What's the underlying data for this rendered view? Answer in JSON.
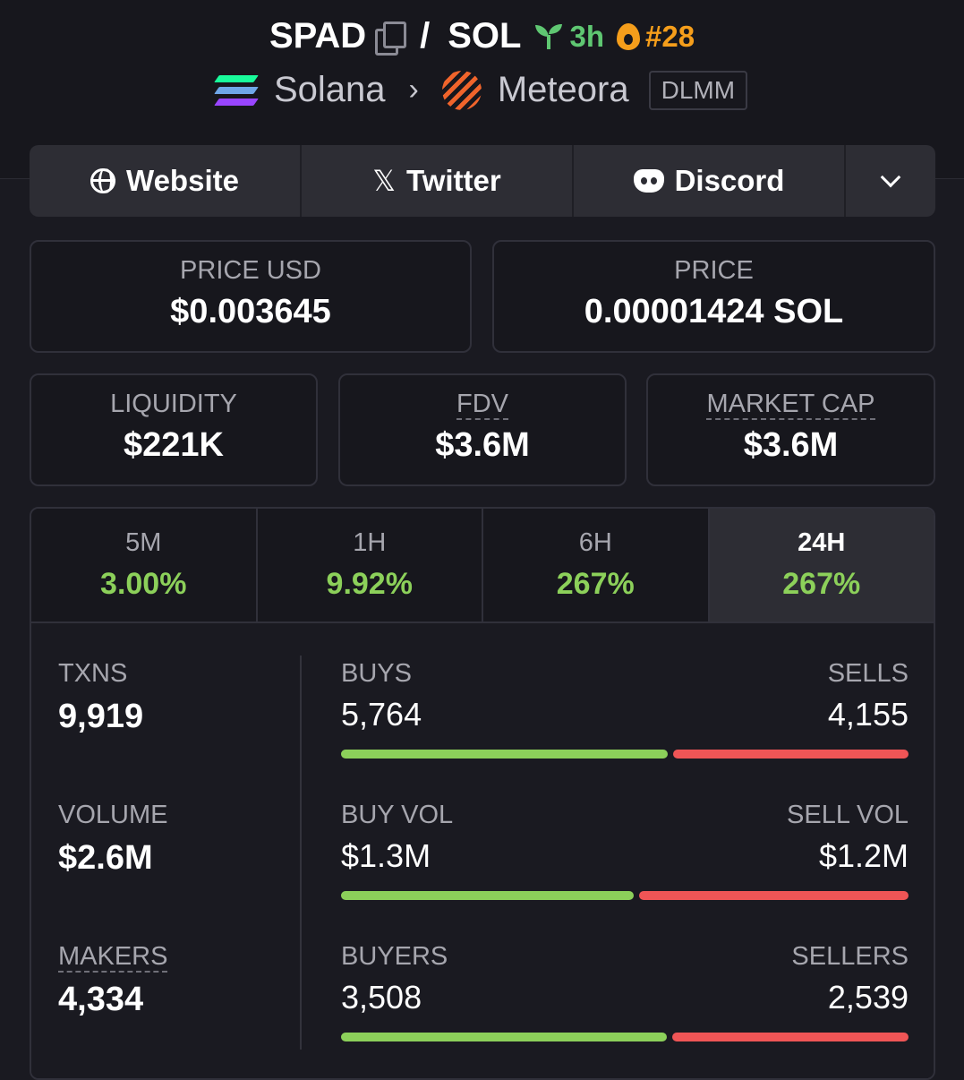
{
  "header": {
    "token_symbol": "SPAD",
    "separator": "/",
    "quote_symbol": "SOL",
    "age": "3h",
    "rank": "#28",
    "chain": "Solana",
    "dex": "Meteora",
    "pool_type": "DLMM",
    "icons": {
      "copy": "copy-icon",
      "age": "seedling-icon",
      "rank": "flame-icon",
      "chain": "solana-logo-icon",
      "dex": "meteora-logo-icon"
    }
  },
  "links": {
    "website": "Website",
    "twitter": "Twitter",
    "discord": "Discord"
  },
  "prices": {
    "price_usd_label": "PRICE USD",
    "price_usd": "$0.003645",
    "price_label": "PRICE",
    "price": "0.00001424 SOL"
  },
  "metrics": {
    "liquidity_label": "LIQUIDITY",
    "liquidity": "$221K",
    "fdv_label": "FDV",
    "fdv": "$3.6M",
    "market_cap_label": "MARKET CAP",
    "market_cap": "$3.6M"
  },
  "timeframes": [
    {
      "label": "5M",
      "change": "3.00%"
    },
    {
      "label": "1H",
      "change": "9.92%"
    },
    {
      "label": "6H",
      "change": "267%"
    },
    {
      "label": "24H",
      "change": "267%"
    }
  ],
  "active_timeframe": "24H",
  "stats": {
    "txns_label": "TXNS",
    "txns": "9,919",
    "volume_label": "VOLUME",
    "volume": "$2.6M",
    "makers_label": "MAKERS",
    "makers": "4,334",
    "buys_label": "BUYS",
    "buys": "5,764",
    "sells_label": "SELLS",
    "sells": "4,155",
    "buy_vol_label": "BUY VOL",
    "buy_vol": "$1.3M",
    "sell_vol_label": "SELL VOL",
    "sell_vol": "$1.2M",
    "buyers_label": "BUYERS",
    "buyers": "3,508",
    "sellers_label": "SELLERS",
    "sellers": "2,539"
  },
  "bar_ratios": {
    "txns_buy_fraction": 0.581,
    "volume_buy_fraction": 0.52,
    "traders_buy_fraction": 0.58
  },
  "colors": {
    "positive": "#8cd05a",
    "buy": "#8cd05a",
    "sell": "#ef5556",
    "age": "#5fc772",
    "rank": "#f59e1b",
    "background": "#1a1a21"
  }
}
